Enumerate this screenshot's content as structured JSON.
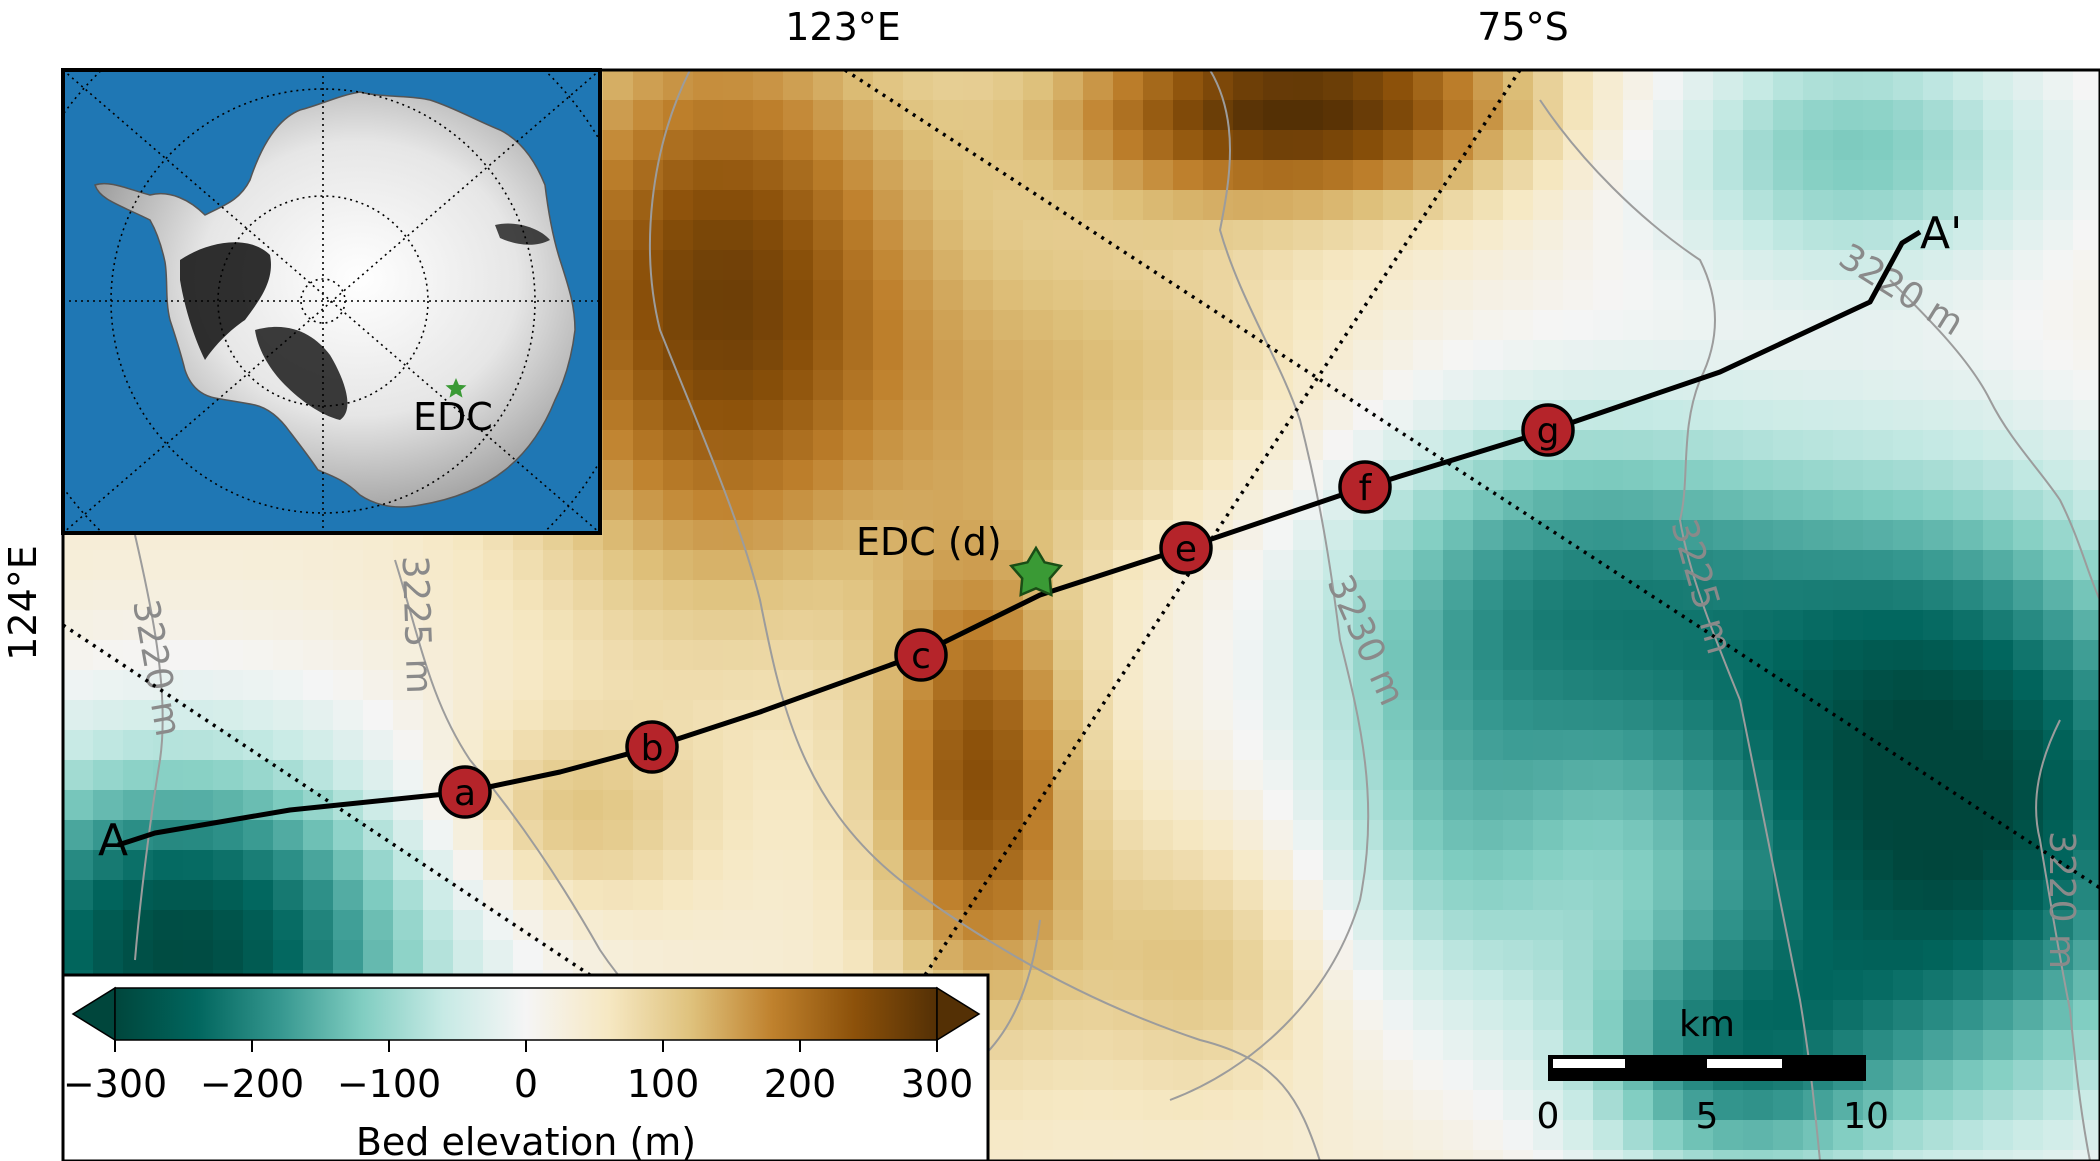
{
  "graticule": {
    "top_left": "123°E",
    "top_right": "75°S",
    "left": "124°E"
  },
  "transect": {
    "start_label": "A",
    "end_label": "A'",
    "markers": [
      "a",
      "b",
      "c",
      "e",
      "f",
      "g"
    ]
  },
  "site": {
    "main_label": "EDC (d)",
    "inset_label": "EDC",
    "star_color": "#3a9a35"
  },
  "contours": [
    {
      "label": "3220 m"
    },
    {
      "label": "3225 m"
    },
    {
      "label": "3230 m"
    },
    {
      "label": "3225 m"
    },
    {
      "label": "3220 m"
    },
    {
      "label": "3220 m"
    }
  ],
  "colorbar": {
    "title": "Bed elevation (m)",
    "ticks": [
      "−300",
      "−200",
      "−100",
      "0",
      "100",
      "200",
      "300"
    ],
    "colors": [
      "#00463c",
      "#01665e",
      "#35978f",
      "#80cdc1",
      "#c7eae5",
      "#f5f5f5",
      "#f6e8c3",
      "#dfc27d",
      "#bf812d",
      "#8c510a",
      "#543005"
    ]
  },
  "scalebar": {
    "unit": "km",
    "ticks": [
      "0",
      "5",
      "10"
    ]
  },
  "colors": {
    "marker_fill": "#b5242a",
    "ocean": "#1f77b4",
    "contour": "#999999"
  }
}
